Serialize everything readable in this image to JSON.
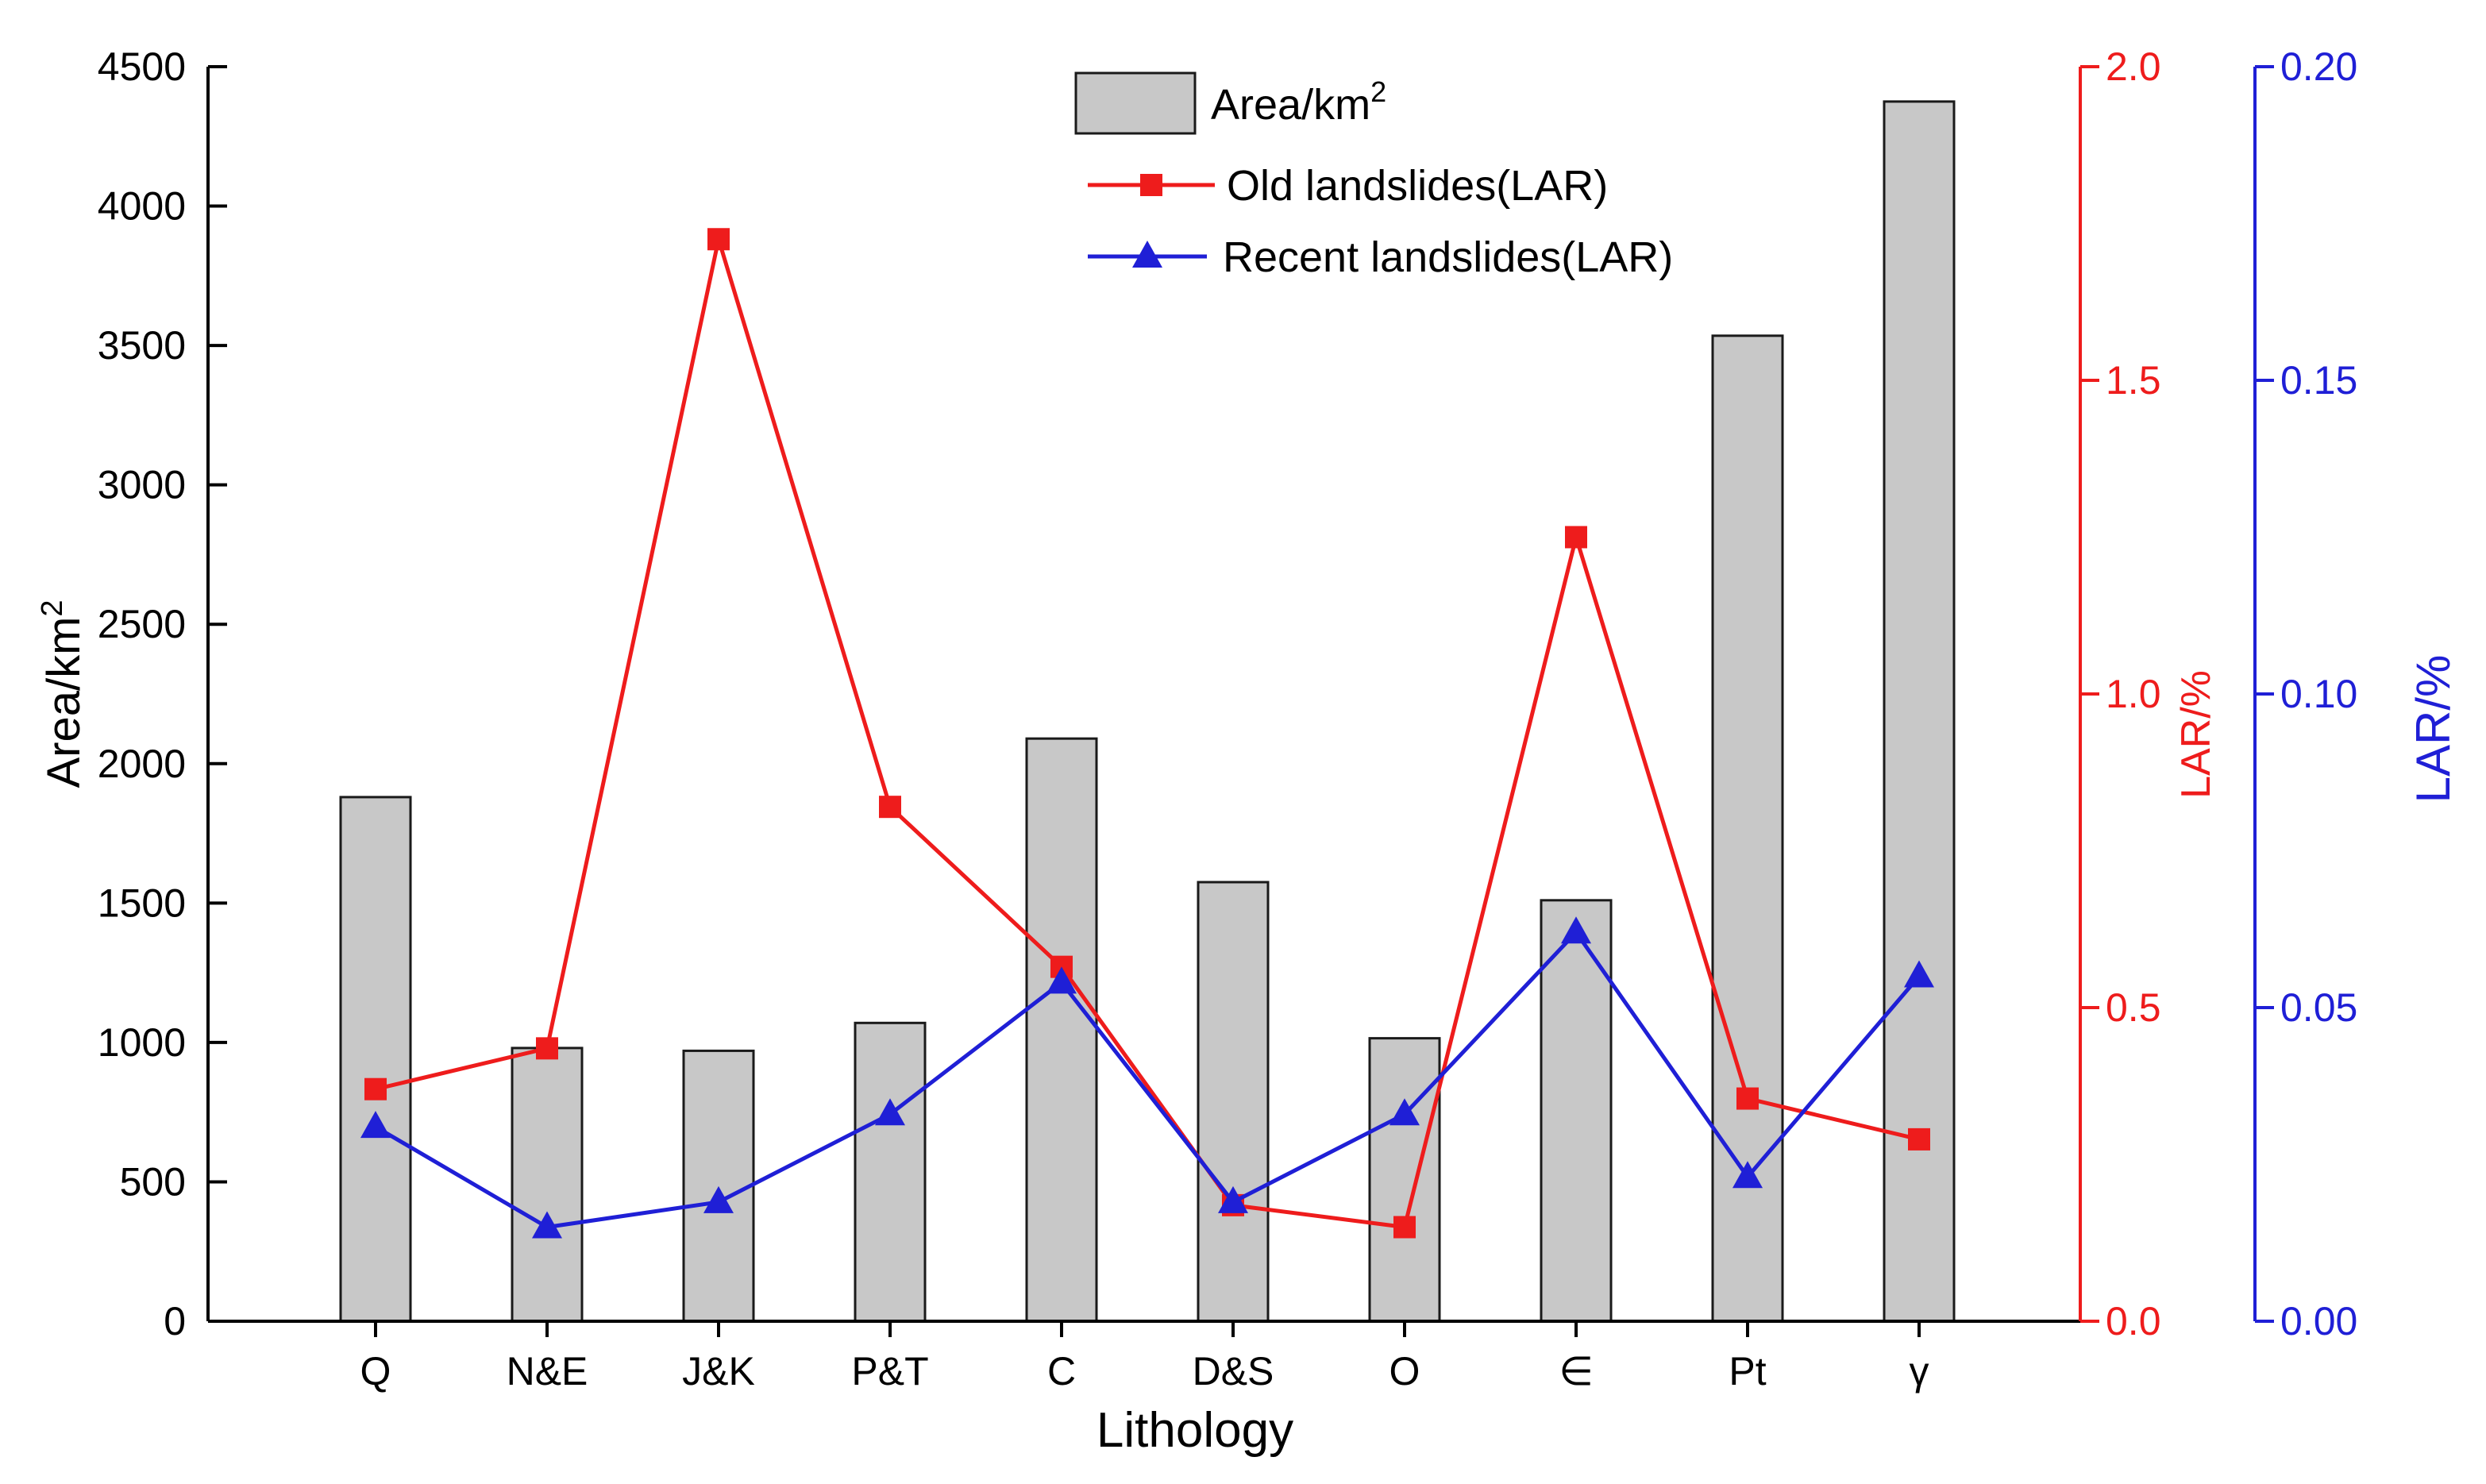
{
  "chart_data": {
    "type": "bar+line",
    "xlabel": "Lithology",
    "categories": [
      "Q",
      "N&E",
      "J&K",
      "P&T",
      "C",
      "D&S",
      "O",
      "∈",
      "Pt",
      "γ"
    ],
    "axes": {
      "left": {
        "label_base": "Area/km",
        "label_sup": "2",
        "ylim": [
          0,
          4500
        ],
        "ticks": [
          "0",
          "500",
          "1000",
          "1500",
          "2000",
          "2500",
          "3000",
          "3500",
          "4000",
          "4500"
        ],
        "color": "#000000"
      },
      "right_red": {
        "label": "LAR/%",
        "ylim": [
          0,
          2.0
        ],
        "ticks": [
          "0.0",
          "0.5",
          "1.0",
          "1.5",
          "2.0"
        ],
        "color": "#ee1c1c"
      },
      "right_blue": {
        "label": "LAR/%",
        "ylim": [
          0,
          0.2
        ],
        "ticks": [
          "0.00",
          "0.05",
          "0.10",
          "0.15",
          "0.20"
        ],
        "color": "#1f1fd6"
      }
    },
    "series": [
      {
        "name": "Area/km2",
        "legend_base": "Area/km",
        "legend_sup": "2",
        "type": "bar",
        "axis": "left",
        "color": "#c8c8c8",
        "values": [
          1880,
          980,
          970,
          1070,
          2090,
          1575,
          1015,
          1510,
          3535,
          4375
        ]
      },
      {
        "name": "Old landslides(LAR)",
        "legend": "Old landslides(LAR)",
        "type": "line",
        "marker": "square",
        "axis": "right_red",
        "color": "#ee1c1c",
        "values": [
          0.37,
          0.435,
          1.725,
          0.82,
          0.565,
          0.185,
          0.15,
          1.25,
          0.355,
          0.29
        ]
      },
      {
        "name": "Recent landslides(LAR)",
        "legend": "Recent landslides(LAR)",
        "type": "line",
        "marker": "triangle",
        "axis": "right_blue",
        "color": "#1f1fd6",
        "values": [
          0.031,
          0.015,
          0.019,
          0.033,
          0.054,
          0.019,
          0.033,
          0.062,
          0.023,
          0.055
        ]
      }
    ]
  }
}
